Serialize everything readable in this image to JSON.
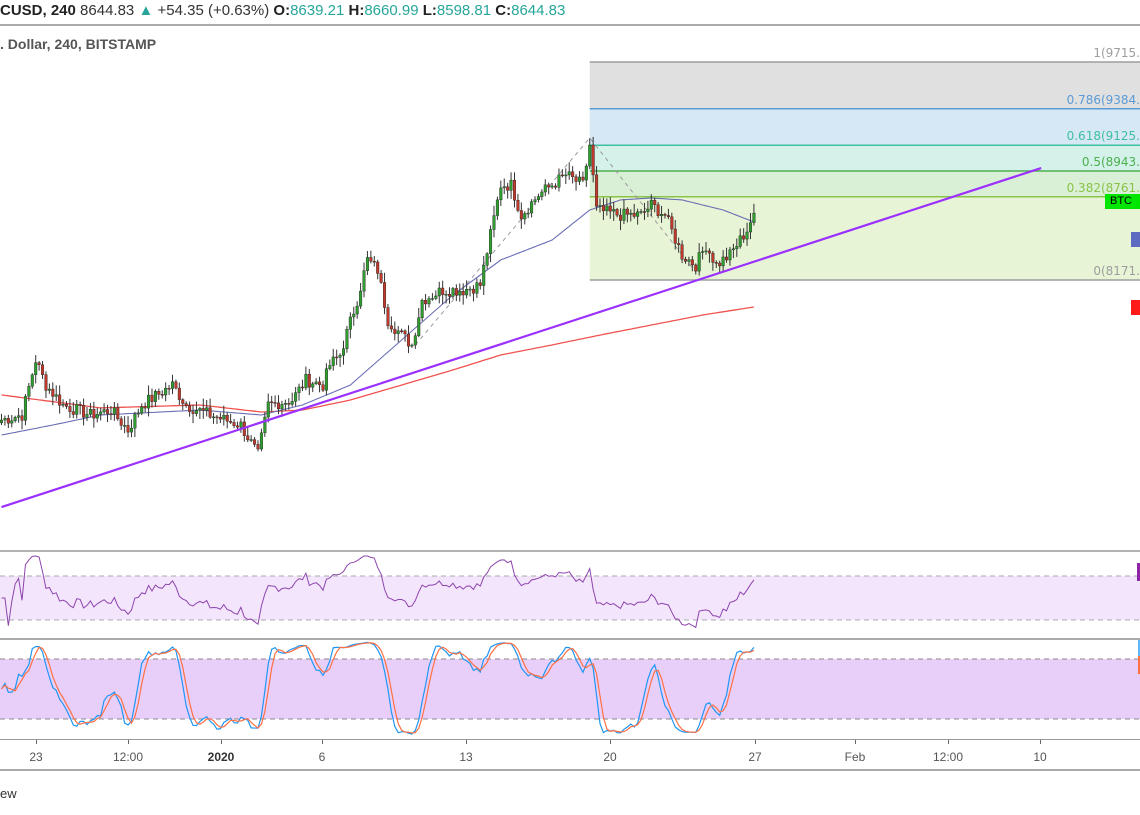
{
  "header": {
    "symbol": "CUSD, 240",
    "last": "8644.83",
    "change": "+54.35 (+0.63%)",
    "o_label": "O:",
    "o": "8639.21",
    "h_label": "H:",
    "h": "8660.99",
    "l_label": "L:",
    "l": "8598.81",
    "c_label": "C:",
    "c": "8644.83"
  },
  "title": ". Dollar, 240, BITSTAMP",
  "fib_levels": [
    {
      "label": "1(9715.",
      "price": 9715,
      "color": "#9e9e9e",
      "fill": "#e0e0e0"
    },
    {
      "label": "0.786(9384.",
      "price": 9384,
      "color": "#5b9bd5",
      "fill": "#d6e8f5"
    },
    {
      "label": "0.618(9125.",
      "price": 9125,
      "color": "#3fbfa0",
      "fill": "#d4f2ea"
    },
    {
      "label": "0.5(8943.",
      "price": 8943,
      "color": "#4caf50",
      "fill": "#daf0d6"
    },
    {
      "label": "0.382(8761.",
      "price": 8761,
      "color": "#8bc34a",
      "fill": "#e8f4d6"
    },
    {
      "label": "0(8171.",
      "price": 8171,
      "color": "#9e9e9e",
      "fill": null
    }
  ],
  "price_tags": [
    {
      "label": "BTC",
      "color": "#00e600",
      "text_color": "#000"
    },
    {
      "label": "",
      "color": "#5c6bc0",
      "text_color": "#fff"
    },
    {
      "label": "",
      "color": "#ff1a1a",
      "text_color": "#fff"
    }
  ],
  "time_axis": [
    "23",
    "12:00",
    "2020",
    "6",
    "13",
    "20",
    "27",
    "Feb",
    "12:00",
    "10"
  ],
  "footer": "ew",
  "colors": {
    "up": "#2e9e2e",
    "down": "#c0392b",
    "wick": "#333",
    "ma_fast": "#6a6fb5",
    "ma_slow": "#ef5350",
    "trend": "#9b30ff",
    "rsi": "#8e44ad",
    "stoch_k": "#2196f3",
    "stoch_d": "#ff7043"
  },
  "chart_data": {
    "type": "candlestick",
    "timeframe": "240",
    "close_keypoints": [
      [
        0,
        7180
      ],
      [
        6,
        7215
      ],
      [
        10,
        7605
      ],
      [
        13,
        7427
      ],
      [
        18,
        7286
      ],
      [
        26,
        7215
      ],
      [
        32,
        7250
      ],
      [
        37,
        7109
      ],
      [
        41,
        7286
      ],
      [
        50,
        7427
      ],
      [
        54,
        7286
      ],
      [
        61,
        7215
      ],
      [
        70,
        7144
      ],
      [
        75,
        6932
      ],
      [
        78,
        7286
      ],
      [
        85,
        7321
      ],
      [
        89,
        7463
      ],
      [
        94,
        7427
      ],
      [
        96,
        7569
      ],
      [
        99,
        7640
      ],
      [
        104,
        8029
      ],
      [
        107,
        8313
      ],
      [
        110,
        8242
      ],
      [
        113,
        7888
      ],
      [
        117,
        7781
      ],
      [
        120,
        7711
      ],
      [
        123,
        8029
      ],
      [
        129,
        8100
      ],
      [
        135,
        8100
      ],
      [
        140,
        8136
      ],
      [
        143,
        8490
      ],
      [
        146,
        8844
      ],
      [
        149,
        8844
      ],
      [
        152,
        8631
      ],
      [
        157,
        8773
      ],
      [
        161,
        8844
      ],
      [
        165,
        8915
      ],
      [
        170,
        8844
      ],
      [
        172,
        9127
      ],
      [
        174,
        8667
      ],
      [
        181,
        8631
      ],
      [
        187,
        8631
      ],
      [
        190,
        8702
      ],
      [
        194,
        8631
      ],
      [
        199,
        8348
      ],
      [
        203,
        8277
      ],
      [
        206,
        8419
      ],
      [
        209,
        8277
      ],
      [
        213,
        8348
      ],
      [
        218,
        8525
      ],
      [
        220,
        8645
      ]
    ],
    "ma_fast_keypoints": [
      [
        0,
        7073
      ],
      [
        15,
        7144
      ],
      [
        29,
        7215
      ],
      [
        58,
        7250
      ],
      [
        76,
        7215
      ],
      [
        88,
        7286
      ],
      [
        102,
        7427
      ],
      [
        117,
        7746
      ],
      [
        132,
        8065
      ],
      [
        146,
        8313
      ],
      [
        161,
        8454
      ],
      [
        172,
        8667
      ],
      [
        181,
        8738
      ],
      [
        190,
        8752
      ],
      [
        199,
        8738
      ],
      [
        211,
        8667
      ],
      [
        220,
        8582
      ]
    ],
    "ma_slow_keypoints": [
      [
        0,
        7357
      ],
      [
        29,
        7265
      ],
      [
        58,
        7286
      ],
      [
        76,
        7236
      ],
      [
        88,
        7250
      ],
      [
        102,
        7321
      ],
      [
        117,
        7427
      ],
      [
        132,
        7534
      ],
      [
        146,
        7640
      ],
      [
        161,
        7711
      ],
      [
        175,
        7781
      ],
      [
        190,
        7852
      ],
      [
        205,
        7923
      ],
      [
        220,
        7980
      ]
    ],
    "trendline": [
      [
        0,
        6563
      ],
      [
        304,
        8964
      ]
    ],
    "fib_anchor_index": 172,
    "swing_dashed": [
      [
        121,
        7711
      ],
      [
        172,
        9177
      ],
      [
        203,
        8228
      ]
    ],
    "rsi_bands": [
      70,
      30
    ],
    "stoch_bands": [
      80,
      20
    ]
  }
}
